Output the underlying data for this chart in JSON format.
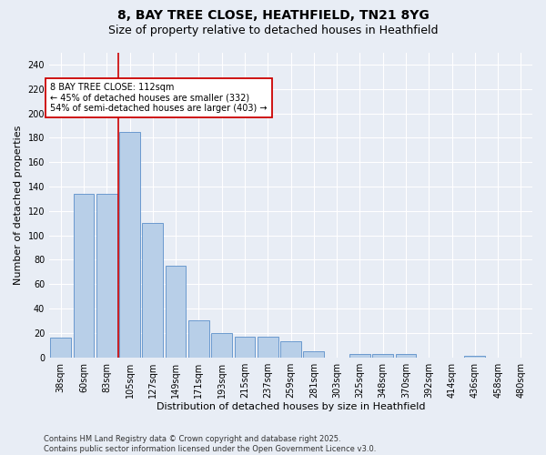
{
  "title_line1": "8, BAY TREE CLOSE, HEATHFIELD, TN21 8YG",
  "title_line2": "Size of property relative to detached houses in Heathfield",
  "xlabel": "Distribution of detached houses by size in Heathfield",
  "ylabel": "Number of detached properties",
  "categories": [
    "38sqm",
    "60sqm",
    "83sqm",
    "105sqm",
    "127sqm",
    "149sqm",
    "171sqm",
    "193sqm",
    "215sqm",
    "237sqm",
    "259sqm",
    "281sqm",
    "303sqm",
    "325sqm",
    "348sqm",
    "370sqm",
    "392sqm",
    "414sqm",
    "436sqm",
    "458sqm",
    "480sqm"
  ],
  "values": [
    16,
    134,
    134,
    185,
    110,
    75,
    30,
    20,
    17,
    17,
    13,
    5,
    0,
    3,
    3,
    3,
    0,
    0,
    1,
    0,
    0
  ],
  "bar_color": "#b8cfe8",
  "bar_edge_color": "#5b8fc9",
  "background_color": "#e8edf5",
  "grid_color": "#ffffff",
  "vline_color": "#cc0000",
  "vline_position": 2.5,
  "annotation_text": "8 BAY TREE CLOSE: 112sqm\n← 45% of detached houses are smaller (332)\n54% of semi-detached houses are larger (403) →",
  "annotation_box_facecolor": "#ffffff",
  "annotation_box_edgecolor": "#cc0000",
  "ylim": [
    0,
    250
  ],
  "yticks": [
    0,
    20,
    40,
    60,
    80,
    100,
    120,
    140,
    160,
    180,
    200,
    220,
    240
  ],
  "footer_text": "Contains HM Land Registry data © Crown copyright and database right 2025.\nContains public sector information licensed under the Open Government Licence v3.0.",
  "title_fontsize": 10,
  "subtitle_fontsize": 9,
  "ylabel_fontsize": 8,
  "xlabel_fontsize": 8,
  "tick_fontsize": 7,
  "annotation_fontsize": 7,
  "footer_fontsize": 6
}
